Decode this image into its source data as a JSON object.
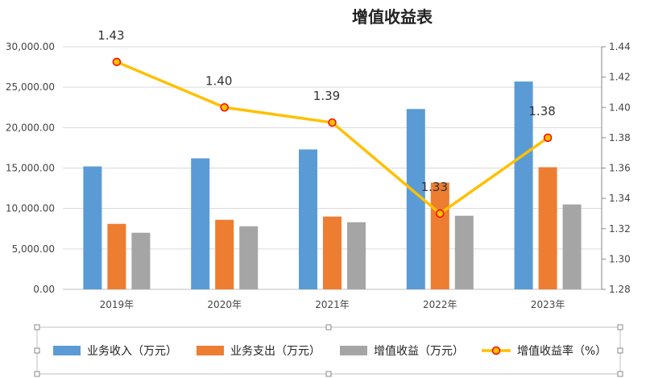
{
  "chart_data": {
    "type": "bar",
    "title": "增值收益表",
    "categories": [
      "2019年",
      "2020年",
      "2021年",
      "2022年",
      "2023年"
    ],
    "series": [
      {
        "name": "业务收入（万元）",
        "kind": "bar",
        "axis": "left",
        "color": "#5b9bd5",
        "values": [
          15200,
          16200,
          17300,
          22300,
          25700
        ]
      },
      {
        "name": "业务支出（万元）",
        "kind": "bar",
        "axis": "left",
        "color": "#ed7d31",
        "values": [
          8100,
          8600,
          9000,
          13200,
          15100
        ]
      },
      {
        "name": "增值收益（万元）",
        "kind": "bar",
        "axis": "left",
        "color": "#a5a5a5",
        "values": [
          7000,
          7800,
          8300,
          9100,
          10500
        ]
      },
      {
        "name": "增值收益率（%）",
        "kind": "line",
        "axis": "right",
        "color": "#ffc000",
        "marker_color": "#ff0000",
        "values": [
          1.43,
          1.4,
          1.39,
          1.33,
          1.38
        ],
        "labels": [
          "1.43",
          "1.40",
          "1.39",
          "1.33",
          "1.38"
        ]
      }
    ],
    "y_left": {
      "lim": [
        0,
        30000
      ],
      "ticks": [
        "0.00",
        "5,000.00",
        "10,000.00",
        "15,000.00",
        "20,000.00",
        "25,000.00",
        "30,000.00"
      ]
    },
    "y_right": {
      "lim": [
        1.28,
        1.44
      ],
      "ticks": [
        "1.28",
        "1.30",
        "1.32",
        "1.34",
        "1.36",
        "1.38",
        "1.40",
        "1.42",
        "1.44"
      ]
    },
    "grid": true,
    "legend_position": "bottom"
  }
}
